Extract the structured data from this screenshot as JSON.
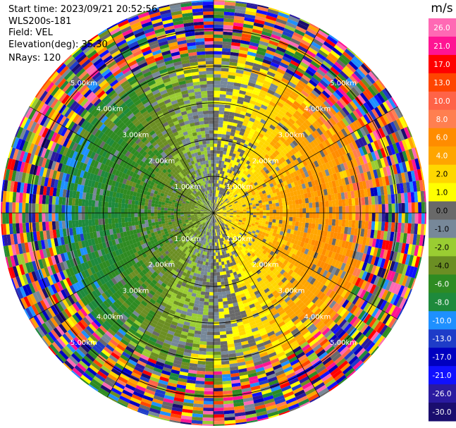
{
  "header": {
    "start_time": "Start time: 2023/09/21 20:52:56",
    "instrument": "WLS200s-181",
    "field": "Field: VEL",
    "elevation": "Elevation(deg): 35.30",
    "nrays": "NRays: 120"
  },
  "chart_data": {
    "type": "heatmap",
    "projection": "polar-ppi",
    "field": "VEL",
    "units": "m/s",
    "n_rays": 120,
    "range_rings_km": [
      1.0,
      2.0,
      3.0,
      4.0,
      5.0
    ],
    "range_ring_labels": [
      "1.00km",
      "2.00km",
      "3.00km",
      "4.00km",
      "5.00km"
    ],
    "max_range_km": 5.8,
    "colorbar": {
      "title": "m/s",
      "tick_labels": [
        "26.0",
        "21.0",
        "17.0",
        "13.0",
        "10.0",
        "8.0",
        "6.0",
        "4.0",
        "2.0",
        "1.0",
        "0.0",
        "-1.0",
        "-2.0",
        "-4.0",
        "-6.0",
        "-8.0",
        "-10.0",
        "-13.0",
        "-17.0",
        "-21.0",
        "-26.0",
        "-30.0"
      ],
      "colors": [
        "#1a0d6e",
        "#2a1aa0",
        "#1010ff",
        "#0000c0",
        "#1e3cc8",
        "#1e90ff",
        "#1e8a3c",
        "#2e8b22",
        "#6b8e23",
        "#9acd32",
        "#778899",
        "#696969",
        "#ffff00",
        "#ffd700",
        "#ffa500",
        "#ff8c00",
        "#ff7f50",
        "#ff6347",
        "#ff4500",
        "#ff0000",
        "#ff1493",
        "#ff69b4"
      ]
    }
  }
}
